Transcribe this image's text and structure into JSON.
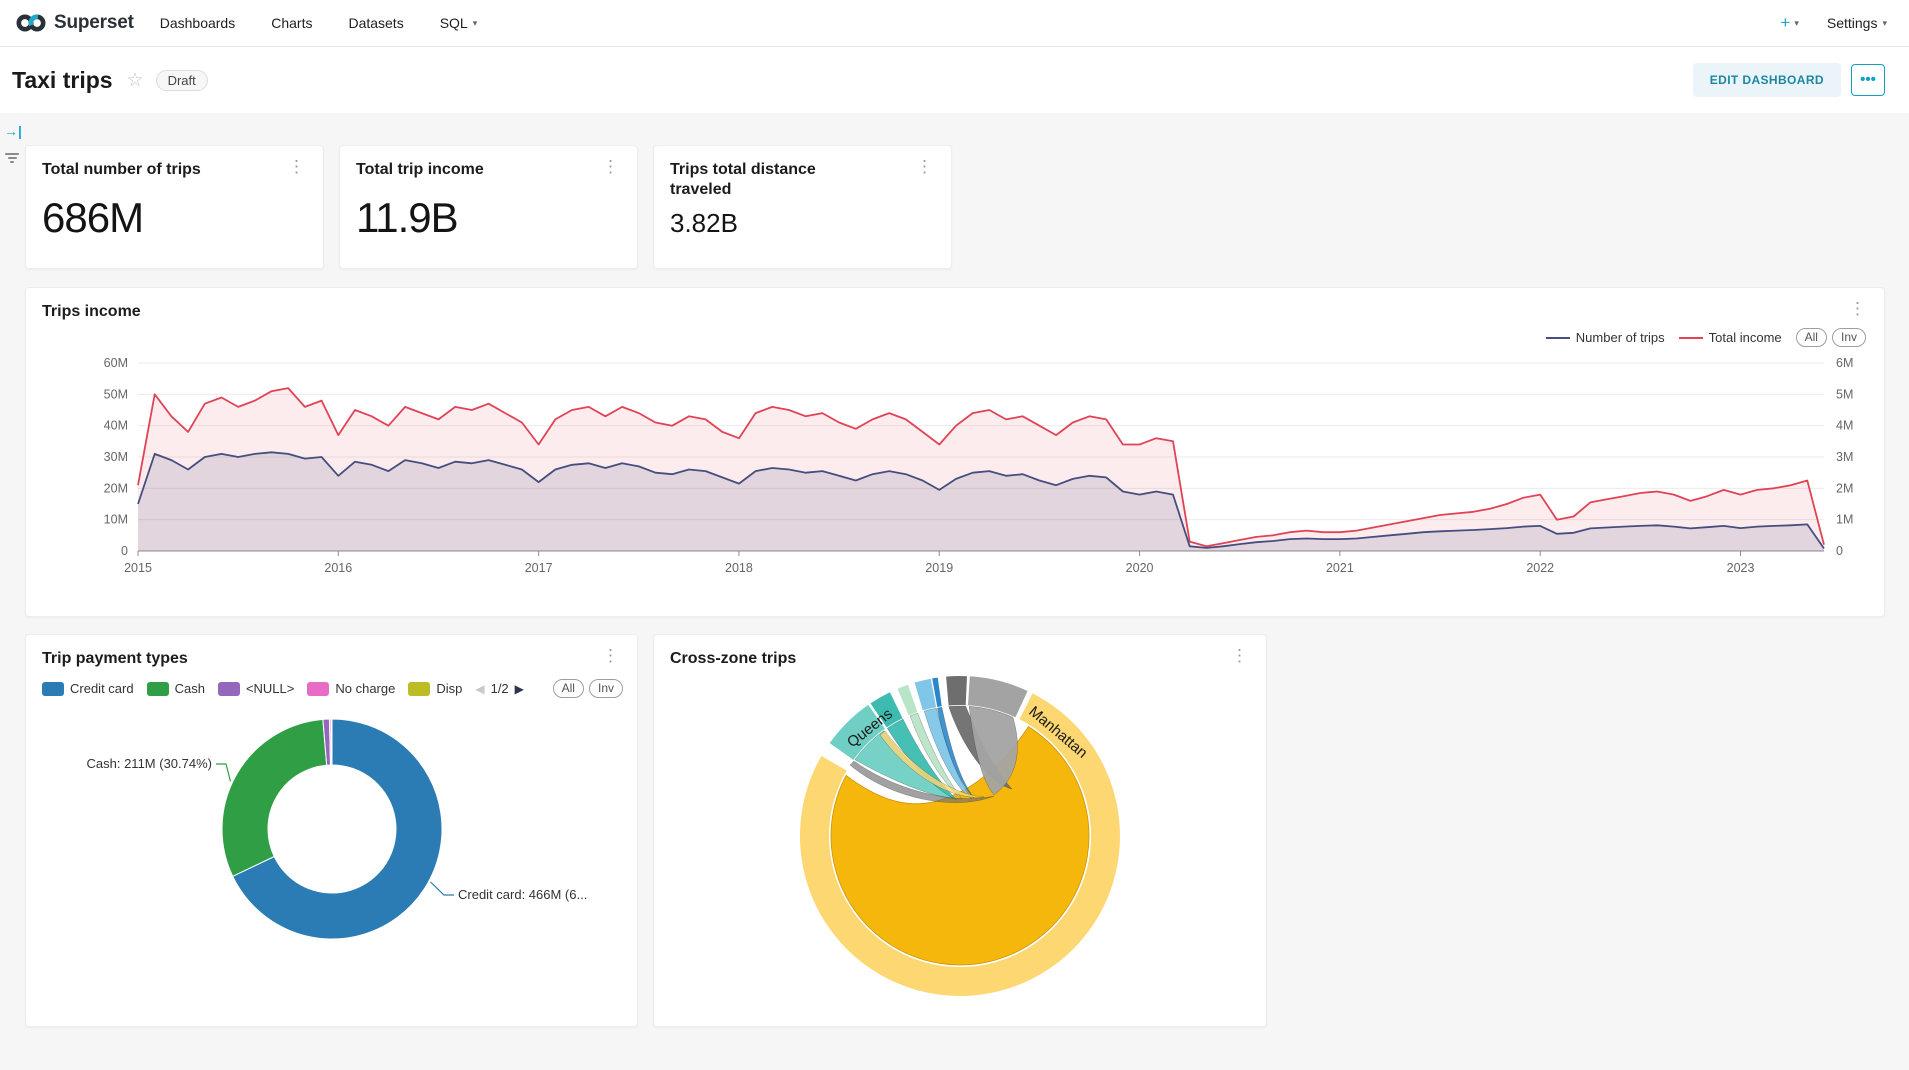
{
  "icons": {
    "kebab": "⋮",
    "star": "☆",
    "caret": "▾",
    "prev": "◀",
    "next": "▶",
    "more": "···",
    "expand": "→|",
    "plus": "+"
  },
  "nav": {
    "brand": "Superset",
    "items": [
      "Dashboards",
      "Charts",
      "Datasets",
      "SQL"
    ],
    "plus": "+",
    "settings": "Settings",
    "accent": "#20A7C9"
  },
  "header": {
    "title": "Taxi trips",
    "badge": "Draft",
    "edit_button": "EDIT DASHBOARD"
  },
  "cards": [
    {
      "title": "Total number of trips",
      "value": "686M"
    },
    {
      "title": "Total trip income",
      "value": "11.9B"
    },
    {
      "title": "Trips total distance traveled",
      "value": "3.82B"
    }
  ],
  "trips_income": {
    "title": "Trips income",
    "pills": [
      "All",
      "Inv"
    ],
    "chart_data": {
      "type": "line",
      "title": "Trips income",
      "x_start": 2015,
      "x_step": 0.083333,
      "xticks": [
        "2015",
        "2016",
        "2017",
        "2018",
        "2019",
        "2020",
        "2021",
        "2022",
        "2023"
      ],
      "left_axis": {
        "ticks": [
          "0",
          "10M",
          "20M",
          "30M",
          "40M",
          "50M",
          "60M"
        ],
        "max": 60
      },
      "right_axis": {
        "ticks": [
          "0",
          "1M",
          "2M",
          "3M",
          "4M",
          "5M",
          "6M"
        ],
        "max": 6
      },
      "grid": true,
      "legend_position": "top-right",
      "series": [
        {
          "name": "Total income",
          "axis": "left",
          "color": "#E04355",
          "fill_opacity": 0.1,
          "values": [
            21,
            50,
            43,
            38,
            47,
            49,
            46,
            48,
            51,
            52,
            46,
            48,
            37,
            45,
            43,
            40,
            46,
            44,
            42,
            46,
            45,
            47,
            44,
            41,
            34,
            42,
            45,
            46,
            43,
            46,
            44,
            41,
            40,
            43,
            42,
            38,
            36,
            44,
            46,
            45,
            43,
            44,
            41,
            39,
            42,
            44,
            42,
            38,
            34,
            40,
            44,
            45,
            42,
            43,
            40,
            37,
            41,
            43,
            42,
            34,
            34,
            36,
            35,
            3,
            1.5,
            2.5,
            3.5,
            4.5,
            5,
            6,
            6.5,
            6,
            6,
            6.5,
            7.5,
            8.5,
            9.5,
            10.5,
            11.5,
            12,
            12.5,
            13.5,
            15,
            17,
            18,
            10,
            11,
            15.5,
            16.5,
            17.5,
            18.5,
            19,
            18,
            16,
            17.5,
            19.5,
            18,
            19.5,
            20,
            21,
            22.5,
            2
          ]
        },
        {
          "name": "Number of trips",
          "axis": "right",
          "color": "#454E7E",
          "fill_opacity": 0.14,
          "values": [
            1.5,
            3.1,
            2.9,
            2.6,
            3.0,
            3.1,
            3.0,
            3.1,
            3.15,
            3.1,
            2.95,
            3.0,
            2.4,
            2.85,
            2.75,
            2.55,
            2.9,
            2.8,
            2.65,
            2.85,
            2.8,
            2.9,
            2.75,
            2.6,
            2.2,
            2.6,
            2.75,
            2.8,
            2.65,
            2.8,
            2.7,
            2.5,
            2.45,
            2.6,
            2.55,
            2.35,
            2.15,
            2.55,
            2.65,
            2.6,
            2.5,
            2.55,
            2.4,
            2.25,
            2.45,
            2.55,
            2.45,
            2.25,
            1.95,
            2.3,
            2.5,
            2.55,
            2.4,
            2.45,
            2.25,
            2.1,
            2.3,
            2.4,
            2.35,
            1.9,
            1.8,
            1.9,
            1.8,
            0.15,
            0.1,
            0.15,
            0.22,
            0.28,
            0.32,
            0.38,
            0.4,
            0.38,
            0.38,
            0.4,
            0.45,
            0.5,
            0.55,
            0.6,
            0.63,
            0.65,
            0.67,
            0.7,
            0.73,
            0.78,
            0.8,
            0.55,
            0.58,
            0.72,
            0.75,
            0.78,
            0.8,
            0.82,
            0.78,
            0.72,
            0.76,
            0.8,
            0.73,
            0.78,
            0.8,
            0.82,
            0.85,
            0.08
          ]
        }
      ]
    }
  },
  "payment_types": {
    "title": "Trip payment types",
    "pagination": "1/2",
    "pills": [
      "All",
      "Inv"
    ],
    "chart_data": {
      "type": "pie",
      "title": "Trip payment types",
      "labels": [
        "Credit card",
        "Cash",
        "<NULL>",
        "No charge",
        "Disp"
      ],
      "values": [
        466,
        211,
        6.5,
        1.6,
        0.9
      ],
      "colors": [
        "#2B7CB5",
        "#2F9E44",
        "#9467BD",
        "#E86CC5",
        "#BCBD22"
      ],
      "donut": true
    },
    "annotations": [
      {
        "text": "Cash: 211M (30.74%)"
      },
      {
        "text": "Credit card: 466M (6..."
      }
    ]
  },
  "cross_zone": {
    "title": "Cross-zone trips",
    "chart_data": {
      "type": "chord",
      "title": "Cross-zone trips",
      "ring_color": "#FCD772",
      "inner_color": "#F5B70B",
      "inner_edge": "#C9940B",
      "segments": [
        {
          "label": "Manhattan",
          "color": "#FCD772",
          "a0": 27,
          "a1": 300
        },
        {
          "label": "Queens",
          "color": "#6FCFC4",
          "a0": 305.5,
          "a1": 325
        },
        {
          "label": "",
          "color": "#3CBCB1",
          "a0": 326,
          "a1": 334
        },
        {
          "label": "",
          "color": "#B8E4C7",
          "a0": 337,
          "a1": 341
        },
        {
          "label": "",
          "color": "#7FC6E8",
          "a0": 343.5,
          "a1": 349.5
        },
        {
          "label": "",
          "color": "#2C87C8",
          "a0": 350,
          "a1": 352
        },
        {
          "label": "",
          "color": "#6E6E6E",
          "a0": 355,
          "a1": 362.5
        },
        {
          "label": "",
          "color": "#A3A3A3",
          "a0": 363.5,
          "a1": 385
        }
      ]
    }
  }
}
